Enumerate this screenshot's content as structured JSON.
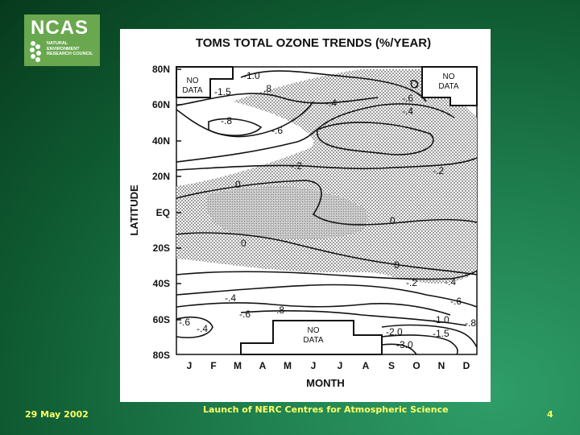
{
  "logo": {
    "name": "NCAS",
    "subtitle_lines": [
      "NATURAL",
      "ENVIRONMENT",
      "RESEARCH COUNCIL"
    ]
  },
  "chart_data": {
    "type": "contour",
    "title": "TOMS TOTAL OZONE TRENDS (%/YEAR)",
    "xlabel": "MONTH",
    "ylabel": "LATITUDE",
    "x_ticks": [
      "J",
      "F",
      "M",
      "A",
      "M",
      "J",
      "J",
      "A",
      "S",
      "O",
      "N",
      "D"
    ],
    "y_ticks": [
      "80N",
      "60N",
      "40N",
      "20N",
      "EQ",
      "20S",
      "40S",
      "60S",
      "80S"
    ],
    "no_data_label_1": "NO",
    "no_data_label_2": "DATA",
    "contour_labels": [
      "-1.0",
      "-1.5",
      ".8",
      "-.8",
      "-.6",
      "-.4",
      "-.6",
      "-.4",
      "-.2",
      "-.2",
      "0",
      "0",
      "0",
      "0",
      "-.2",
      "-.4",
      "-.6",
      "-.4",
      "-.6",
      "-.8",
      "-.4",
      "-.6",
      "-1.0",
      "-.8",
      "-1.5",
      "-2.0",
      "-3.0"
    ],
    "shading": "stippled regions mark trends not significantly different from zero"
  },
  "footer": {
    "date": "29 May 2002",
    "title": "Launch of NERC Centres for Atmospheric Science",
    "page": "4"
  }
}
